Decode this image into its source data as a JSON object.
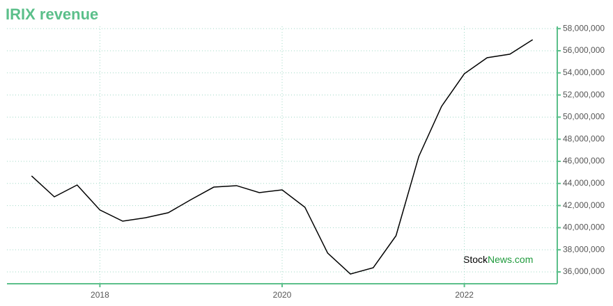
{
  "chart_data": {
    "type": "line",
    "title": "IRIX revenue",
    "x": [
      2017.25,
      2017.5,
      2017.75,
      2018,
      2018.25,
      2018.5,
      2018.75,
      2019,
      2019.25,
      2019.5,
      2019.75,
      2020,
      2020.25,
      2020.5,
      2020.75,
      2021,
      2021.25,
      2021.5,
      2021.75,
      2022,
      2022.25,
      2022.5,
      2022.75
    ],
    "series": [
      {
        "name": "Revenue",
        "color": "#000000",
        "values": [
          44680000,
          42790000,
          43860000,
          41600000,
          40590000,
          40900000,
          41350000,
          42540000,
          43670000,
          43800000,
          43170000,
          43420000,
          41850000,
          37700000,
          35810000,
          36380000,
          39270000,
          46440000,
          50970000,
          53920000,
          55370000,
          55690000,
          57000000
        ]
      }
    ],
    "xlim": [
      2016.98,
      2023.02
    ],
    "xticks": [
      2018,
      2020,
      2022
    ],
    "ylim": [
      34930000,
      58200000
    ],
    "yticks": [
      {
        "value": 36000000,
        "label": "36,000,000"
      },
      {
        "value": 38000000,
        "label": "38,000,000"
      },
      {
        "value": 40000000,
        "label": "40,000,000"
      },
      {
        "value": 42000000,
        "label": "42,000,000"
      },
      {
        "value": 44000000,
        "label": "44,000,000"
      },
      {
        "value": 46000000,
        "label": "46,000,000"
      },
      {
        "value": 48000000,
        "label": "48,000,000"
      },
      {
        "value": 50000000,
        "label": "50,000,000"
      },
      {
        "value": 52000000,
        "label": "52,000,000"
      },
      {
        "value": 54000000,
        "label": "54,000,000"
      },
      {
        "value": 56000000,
        "label": "56,000,000"
      },
      {
        "value": 58000000,
        "label": "58,000,000"
      }
    ],
    "grid": true,
    "axis_color": "#5bbf8a",
    "watermark": [
      "Stock",
      "News.com"
    ]
  }
}
